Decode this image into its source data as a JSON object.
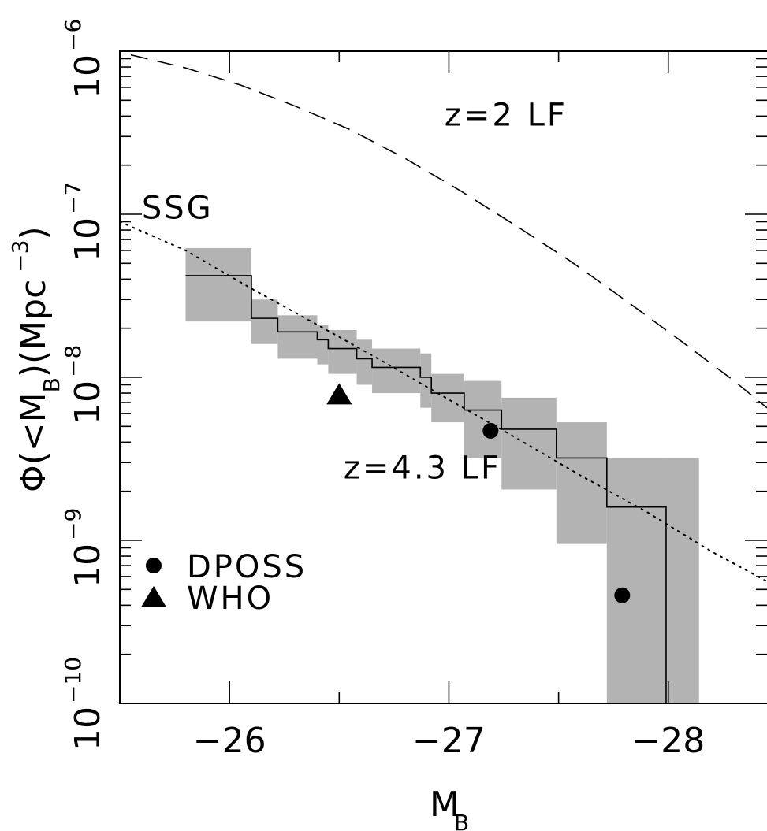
{
  "chart_data": {
    "type": "line",
    "xlabel": "M_B",
    "ylabel": "Φ(<M_B)(Mpc^-3)",
    "xlim": [
      -25.5,
      -28.45
    ],
    "ylim_log10": [
      -10,
      -6
    ],
    "y_scale": "log",
    "grid": false,
    "legend_position": "bottom-left",
    "x_ticks": [
      {
        "value": -26,
        "label": "−26"
      },
      {
        "value": -27,
        "label": "−27"
      },
      {
        "value": -28,
        "label": "−28"
      }
    ],
    "y_ticks": [
      {
        "exp": -10,
        "base": "10",
        "sup": "−10"
      },
      {
        "exp": -9,
        "base": "10",
        "sup": "−9"
      },
      {
        "exp": -8,
        "base": "10",
        "sup": "−8"
      },
      {
        "exp": -7,
        "base": "10",
        "sup": "−7"
      },
      {
        "exp": -6,
        "base": "10",
        "sup": "−6"
      }
    ],
    "series": [
      {
        "name": "z=2 LF",
        "style": "dashed",
        "x": [
          -25.55,
          -25.8,
          -26.05,
          -26.3,
          -26.55,
          -26.8,
          -27.05,
          -27.3,
          -27.55,
          -27.8,
          -28.05,
          -28.3,
          -28.45
        ],
        "y": [
          9.5e-07,
          7.9e-07,
          6.2e-07,
          4.6e-07,
          3.3e-07,
          2.2e-07,
          1.4e-07,
          8.6e-08,
          5.2e-08,
          3e-08,
          1.7e-08,
          9.5e-09,
          6.5e-09
        ]
      },
      {
        "name": "SSG",
        "style": "dotted",
        "x": [
          -25.5,
          -25.8,
          -26.1,
          -26.4,
          -26.7,
          -27.0,
          -27.3,
          -27.6,
          -27.9,
          -28.2,
          -28.45
        ],
        "y": [
          9e-08,
          6e-08,
          3.5e-08,
          2.1e-08,
          1.25e-08,
          7.3e-09,
          4.3e-09,
          2.5e-09,
          1.5e-09,
          8.5e-10,
          5.6e-10
        ]
      },
      {
        "name": "z=4.3 LF",
        "style": "step",
        "x": [
          -25.8,
          -26.1,
          -26.22,
          -26.4,
          -26.45,
          -26.58,
          -26.65,
          -26.87,
          -26.92,
          -27.07,
          -27.24,
          -27.49,
          -27.72,
          -27.99
        ],
        "y": [
          4.2e-08,
          2.3e-08,
          1.9e-08,
          1.7e-08,
          1.5e-08,
          1.3e-08,
          1.15e-08,
          1e-08,
          8e-09,
          6.3e-09,
          4.8e-09,
          3.2e-09,
          1.6e-09,
          1e-10
        ],
        "band_low": [
          2.2e-08,
          1.6e-08,
          1.3e-08,
          1.2e-08,
          1.05e-08,
          9e-09,
          8e-09,
          6.5e-09,
          5.3e-09,
          3.2e-09,
          2.05e-09,
          9.5e-10,
          1e-10,
          1e-10
        ],
        "band_high": [
          6.2e-08,
          3e-08,
          2.4e-08,
          2.1e-08,
          1.95e-08,
          1.7e-08,
          1.5e-08,
          1.4e-08,
          1.05e-08,
          9.5e-09,
          7.5e-09,
          5.3e-09,
          3.2e-09,
          3.2e-09
        ],
        "band_x_end": -28.14
      }
    ],
    "points": [
      {
        "name": "DPOSS",
        "marker": "circle",
        "x": [
          -27.19,
          -27.79
        ],
        "y": [
          4.7e-09,
          4.6e-10
        ]
      },
      {
        "name": "WHO",
        "marker": "triangle",
        "x": [
          -26.5
        ],
        "y": [
          7.7e-09
        ]
      }
    ],
    "annotations": [
      {
        "text": "z=2 LF",
        "x": -26.98,
        "y": 3.5e-07
      },
      {
        "text": "SSG",
        "x": -25.6,
        "y": 9.4e-08
      },
      {
        "text": "z=4.3 LF",
        "x": -26.52,
        "y": 2.4e-09
      }
    ],
    "legend": [
      {
        "label": "DPOSS",
        "marker": "circle"
      },
      {
        "label": "WHO",
        "marker": "triangle"
      }
    ]
  }
}
